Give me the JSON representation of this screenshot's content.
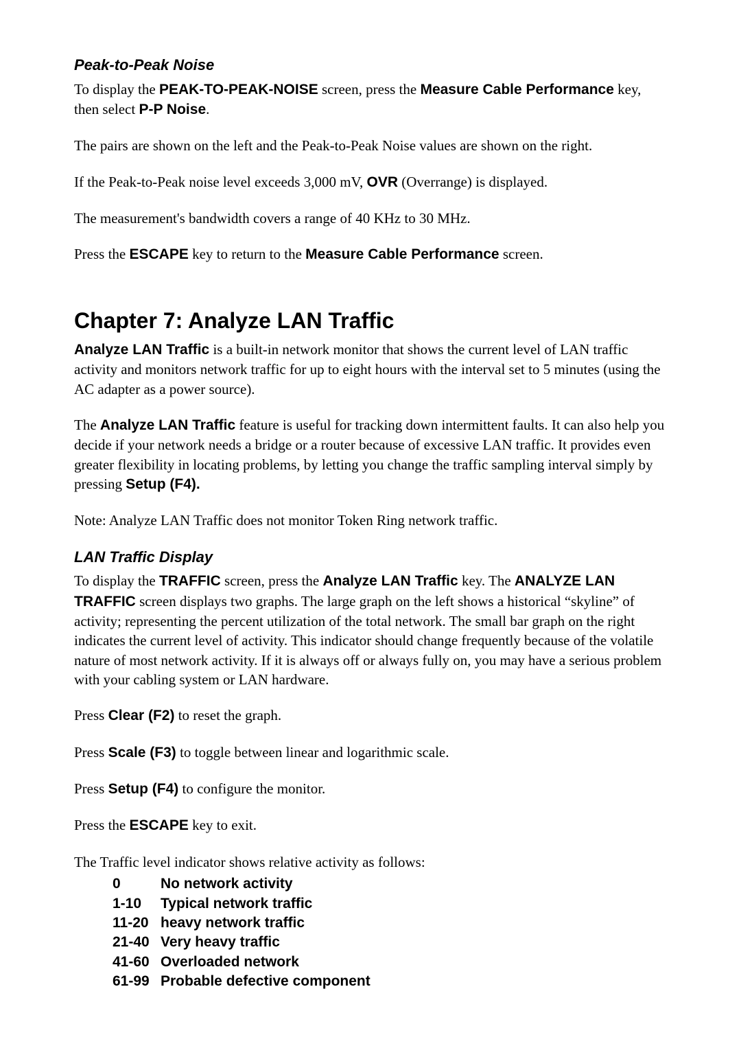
{
  "section1": {
    "heading": "Peak-to-Peak Noise",
    "p1_a": "To display the ",
    "p1_b": "PEAK-TO-PEAK-NOISE",
    "p1_c": " screen, press the ",
    "p1_d": "Measure Cable Performance",
    "p1_e": " key, then select ",
    "p1_f": "P-P Noise",
    "p1_g": ".",
    "p2": "The pairs are shown on the left and the Peak-to-Peak Noise values are shown on the right.",
    "p3_a": "If the Peak-to-Peak noise level exceeds 3,000 mV, ",
    "p3_b": "OVR",
    "p3_c": " (Overrange) is displayed.",
    "p4": "The measurement's bandwidth covers a range of 40 KHz to 30 MHz.",
    "p5_a": "Press the ",
    "p5_b": "ESCAPE",
    "p5_c": " key to return to the ",
    "p5_d": "Measure Cable Performance",
    "p5_e": " screen."
  },
  "chapter": {
    "title": "Chapter 7: Analyze LAN Traffic",
    "p1_a": "Analyze LAN Traffic",
    "p1_b": " is a built-in network monitor that shows the current level of LAN traffic activity and monitors network traffic for up to eight hours with the interval set to 5 minutes (using the AC adapter as a power source).",
    "p2_a": "The ",
    "p2_b": "Analyze LAN Traffic",
    "p2_c": " feature is useful for tracking down intermittent faults. It can also help you decide if your network needs a bridge or a router because of excessive LAN traffic. It provides even greater flexibility in locating problems, by letting you change the traffic sampling interval simply by pressing ",
    "p2_d": "Setup (F4).",
    "p3": "Note: Analyze LAN Traffic does not monitor Token Ring network traffic."
  },
  "section2": {
    "heading": "LAN Traffic Display",
    "p1_a": "To display the ",
    "p1_b": "TRAFFIC",
    "p1_c": " screen, press the ",
    "p1_d": "Analyze LAN Traffic",
    "p1_e": " key. The ",
    "p1_f": "ANALYZE LAN TRAFFIC",
    "p1_g": " screen displays two graphs. The large graph on the left shows a historical “skyline” of activity; representing the percent utilization of the total network. The small bar graph on the right indicates the current level of activity. This indicator should change frequently because of the volatile nature of most network activity. If it is always off or always fully on, you may have a serious problem with your cabling system or LAN hardware.",
    "p2_a": "Press ",
    "p2_b": "Clear (F2)",
    "p2_c": " to reset the graph.",
    "p3_a": "Press ",
    "p3_b": "Scale (F3)",
    "p3_c": " to toggle between linear and logarithmic scale.",
    "p4_a": "Press ",
    "p4_b": "Setup (F4)",
    "p4_c": " to configure the monitor.",
    "p5_a": "Press the ",
    "p5_b": "ESCAPE",
    "p5_c": " key to exit.",
    "p6": "The Traffic level indicator shows relative activity as follows:",
    "levels": [
      {
        "range": "0",
        "desc": "No network activity"
      },
      {
        "range": "1-10",
        "desc": "Typical network traffic"
      },
      {
        "range": "11-20",
        "desc": "heavy network traffic"
      },
      {
        "range": "21-40",
        "desc": "Very heavy traffic"
      },
      {
        "range": "41-60",
        "desc": "Overloaded network"
      },
      {
        "range": "61-99",
        "desc": "Probable defective component"
      }
    ]
  }
}
